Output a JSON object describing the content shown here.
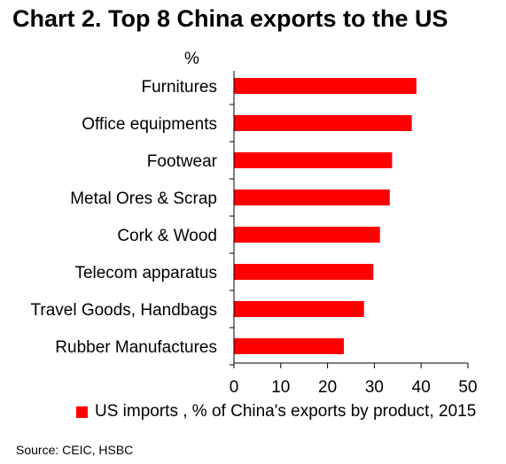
{
  "title": "Chart 2. Top 8 China exports to the US",
  "source": "Source: CEIC, HSBC",
  "colors": {
    "bar": "#ff0000",
    "axis": "#000000"
  },
  "chart_data": {
    "type": "bar",
    "orientation": "horizontal",
    "unit_label": "%",
    "categories": [
      "Furnitures",
      "Office equipments",
      "Footwear",
      "Metal Ores & Scrap",
      "Cork & Wood",
      "Telecom apparatus",
      "Travel Goods, Handbags",
      "Rubber Manufactures"
    ],
    "series": [
      {
        "name": "US imports , % of China's exports by product, 2015",
        "values": [
          39,
          38,
          33.8,
          33.3,
          31.2,
          29.8,
          27.8,
          23.5
        ]
      }
    ],
    "xlim": [
      0,
      50
    ],
    "xticks": [
      0,
      10,
      20,
      30,
      40,
      50
    ],
    "grid": false,
    "legend": "bottom"
  }
}
